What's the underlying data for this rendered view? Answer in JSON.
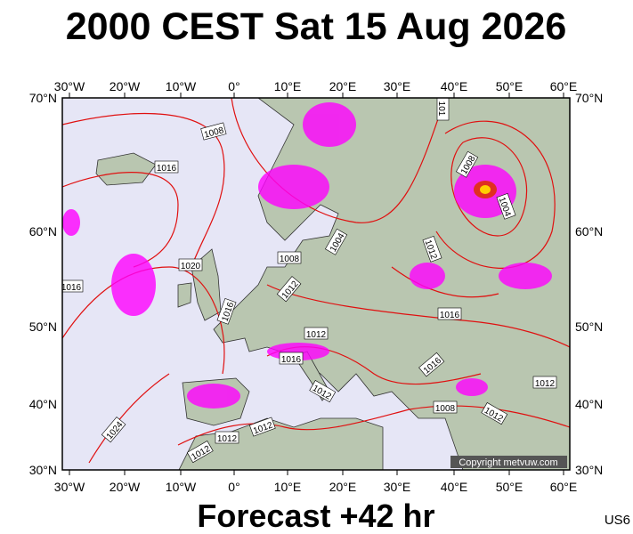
{
  "header": {
    "title": "2000 CEST Sat 15 Aug 2026"
  },
  "lon_labels": [
    "30°W",
    "20°W",
    "10°W",
    "0°",
    "10°E",
    "20°E",
    "30°E",
    "40°E",
    "50°E",
    "60°E"
  ],
  "lat_labels": [
    "70°N",
    "60°N",
    "50°N",
    "40°N",
    "30°N"
  ],
  "isobar_labels": [
    "1008",
    "1016",
    "1020",
    "1016",
    "1016",
    "1008",
    "1004",
    "1012",
    "1012",
    "1016",
    "1012",
    "1012",
    "1016",
    "1016",
    "1012",
    "1008",
    "1012",
    "1024",
    "1012",
    "1012",
    "1012",
    "1008",
    "1004",
    "101"
  ],
  "copyright": "Copyright metvuw.com",
  "footer": {
    "forecast": "Forecast +42 hr",
    "code": "US6"
  }
}
